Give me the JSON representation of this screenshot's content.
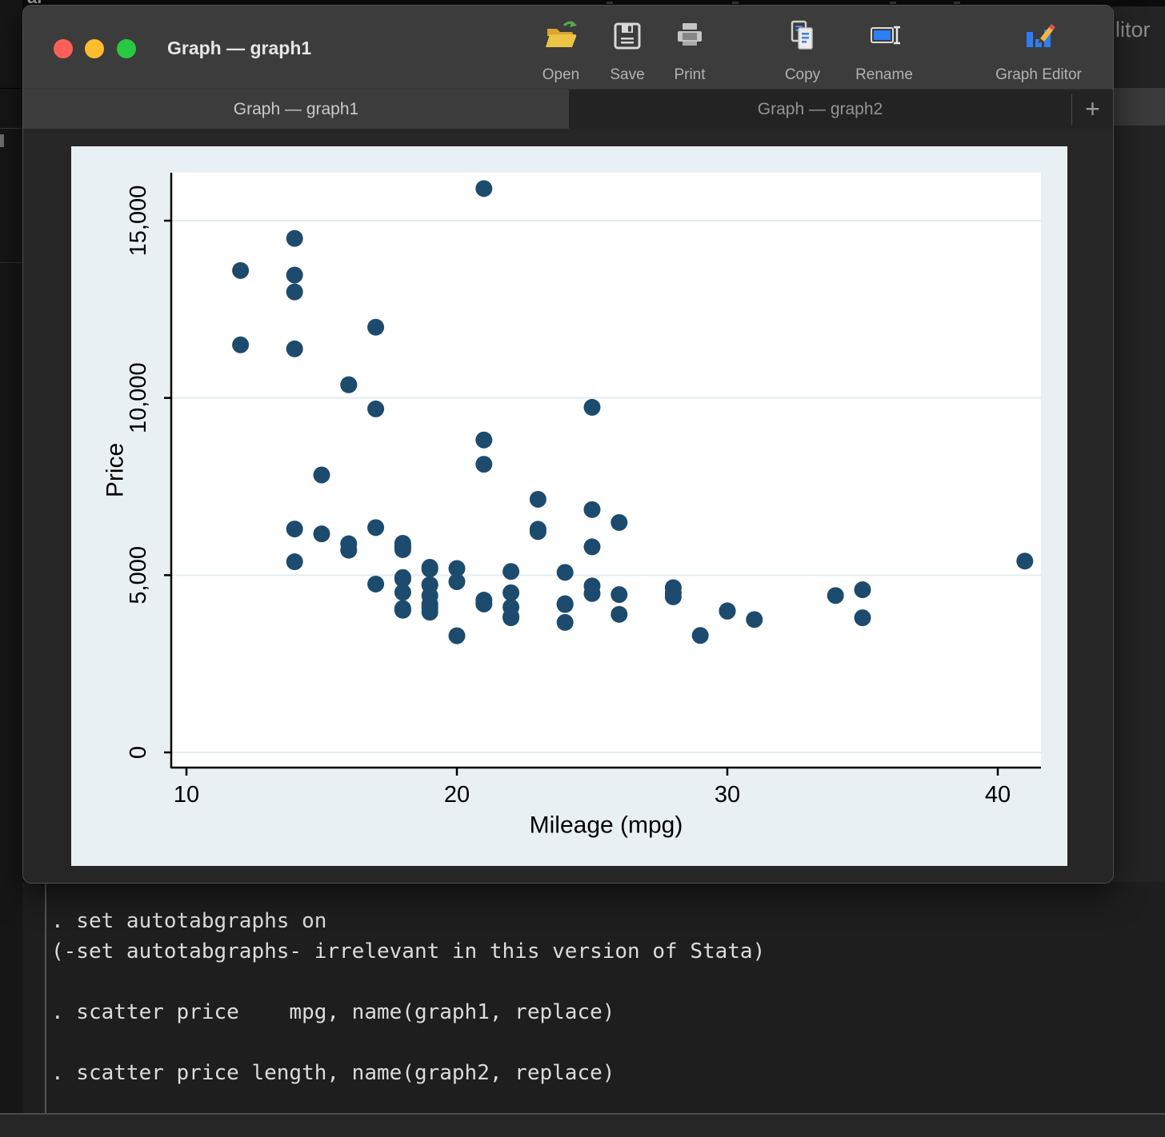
{
  "background": {
    "top_left_partial_text": "al",
    "right_edge_partial_text": "litor"
  },
  "window": {
    "title": "Graph — graph1",
    "traffic_lights": [
      "close",
      "minimize",
      "zoom"
    ],
    "toolbar": {
      "items": [
        {
          "name": "open",
          "label": "Open"
        },
        {
          "name": "save",
          "label": "Save"
        },
        {
          "name": "print",
          "label": "Print"
        },
        {
          "name": "copy",
          "label": "Copy"
        },
        {
          "name": "rename",
          "label": "Rename"
        },
        {
          "name": "graph-editor",
          "label": "Graph Editor"
        }
      ]
    },
    "tabs": [
      {
        "label": "Graph — graph1",
        "active": true
      },
      {
        "label": "Graph — graph2",
        "active": false
      }
    ],
    "new_tab_label": "+"
  },
  "console": {
    "lines": [
      ". set autotabgraphs on",
      "(-set autotabgraphs- irrelevant in this version of Stata)",
      ". scatter price    mpg, name(graph1, replace)",
      ". scatter price length, name(graph2, replace)"
    ]
  },
  "chart_data": {
    "type": "scatter",
    "title": "",
    "xlabel": "Mileage (mpg)",
    "ylabel": "Price",
    "x_ticks": [
      10,
      20,
      30,
      40
    ],
    "x_tick_labels": [
      "10",
      "20",
      "30",
      "40"
    ],
    "y_ticks": [
      0,
      5000,
      10000,
      15000
    ],
    "y_tick_labels": [
      "0",
      "5,000",
      "10,000",
      "15,000"
    ],
    "xlim": [
      9.4,
      41.6
    ],
    "ylim": [
      -455,
      16360
    ],
    "grid": true,
    "legend": "none",
    "marker_color": "#1d4b6e",
    "plot_bg": "#ffffff",
    "outer_bg": "#e9f0f3",
    "grid_color": "#e4edf0",
    "points_xy": [
      [
        22,
        4099
      ],
      [
        17,
        4749
      ],
      [
        22,
        3799
      ],
      [
        20,
        4816
      ],
      [
        15,
        7827
      ],
      [
        18,
        5788
      ],
      [
        26,
        4453
      ],
      [
        20,
        5189
      ],
      [
        16,
        10372
      ],
      [
        19,
        4082
      ],
      [
        14,
        11385
      ],
      [
        14,
        14500
      ],
      [
        21,
        15906
      ],
      [
        29,
        3299
      ],
      [
        16,
        5705
      ],
      [
        22,
        4504
      ],
      [
        22,
        5104
      ],
      [
        24,
        3667
      ],
      [
        19,
        3955
      ],
      [
        30,
        3984
      ],
      [
        18,
        4010
      ],
      [
        16,
        5886
      ],
      [
        17,
        6342
      ],
      [
        28,
        4389
      ],
      [
        21,
        4187
      ],
      [
        12,
        11497
      ],
      [
        12,
        13594
      ],
      [
        14,
        13466
      ],
      [
        22,
        3829
      ],
      [
        14,
        5379
      ],
      [
        15,
        6165
      ],
      [
        18,
        4516
      ],
      [
        14,
        6303
      ],
      [
        20,
        3291
      ],
      [
        21,
        8814
      ],
      [
        19,
        5172
      ],
      [
        19,
        4733
      ],
      [
        18,
        4890
      ],
      [
        19,
        4181
      ],
      [
        24,
        4195
      ],
      [
        16,
        10371
      ],
      [
        28,
        4647
      ],
      [
        34,
        4425
      ],
      [
        25,
        4482
      ],
      [
        26,
        6486
      ],
      [
        18,
        4060
      ],
      [
        18,
        5798
      ],
      [
        18,
        4934
      ],
      [
        19,
        5222
      ],
      [
        19,
        4723
      ],
      [
        19,
        4424
      ],
      [
        24,
        4172
      ],
      [
        17,
        9690
      ],
      [
        23,
        6295
      ],
      [
        25,
        9735
      ],
      [
        23,
        6229
      ],
      [
        35,
        4589
      ],
      [
        24,
        5079
      ],
      [
        21,
        8129
      ],
      [
        21,
        4296
      ],
      [
        25,
        5799
      ],
      [
        28,
        4499
      ],
      [
        30,
        3995
      ],
      [
        14,
        12990
      ],
      [
        26,
        3895
      ],
      [
        35,
        3798
      ],
      [
        18,
        5899
      ],
      [
        31,
        3748
      ],
      [
        18,
        5719
      ],
      [
        23,
        7140
      ],
      [
        41,
        5397
      ],
      [
        25,
        4697
      ],
      [
        25,
        6850
      ],
      [
        17,
        11995
      ]
    ]
  }
}
